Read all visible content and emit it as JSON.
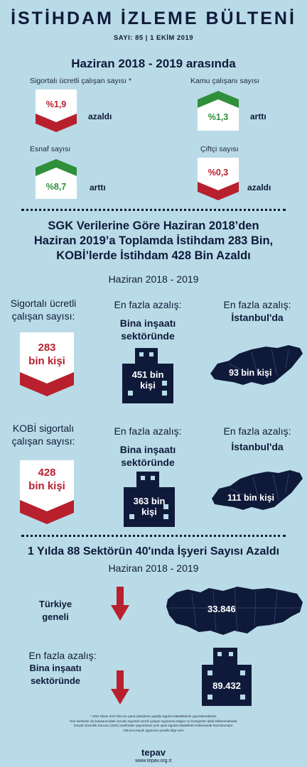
{
  "header": {
    "title": "İSTİHDAM İZLEME BÜLTENİ",
    "issue": "SAYI: 85 | 1 EKİM 2019"
  },
  "summary": {
    "period": "Haziran 2018 - 2019 arasında",
    "items": [
      {
        "label": "Sigortalı ücretli çalışan sayısı *",
        "value": "%1,9",
        "status": "azaldı",
        "direction": "down",
        "color": "#b8202e"
      },
      {
        "label": "Kamu çalışanı sayısı",
        "value": "%1,3",
        "status": "arttı",
        "direction": "up",
        "color": "#2f8f3a"
      },
      {
        "label": "Esnaf sayısı",
        "value": "%8,7",
        "status": "arttı",
        "direction": "up",
        "color": "#2f8f3a"
      },
      {
        "label": "Çiftçi sayısı",
        "value": "%0,3",
        "status": "azaldı",
        "direction": "down",
        "color": "#b8202e"
      }
    ]
  },
  "section2": {
    "headline": [
      "SGK Verilerine Göre Haziran 2018’den",
      "Haziran 2019’a Toplamda İstihdam 283 Bin,",
      "KOBİ’lerde İstihdam 428 Bin Azaldı"
    ],
    "period": "Haziran 2018 - 2019",
    "rows": [
      {
        "left_label": [
          "Sigortalı ücretli",
          "çalışan sayısı:"
        ],
        "left_value": [
          "283",
          "bin kişi"
        ],
        "mid_label": "En fazla azalış:",
        "mid_bold": [
          "Bina inşaatı",
          "sektöründe"
        ],
        "mid_value": [
          "451 bin",
          "kişi"
        ],
        "right_label": "En fazla azalış:",
        "right_bold": "İstanbul'da",
        "right_value": "93 bin kişi"
      },
      {
        "left_label": [
          "KOBİ sigortalı",
          "çalışan sayısı:"
        ],
        "left_value": [
          "428",
          "bin kişi"
        ],
        "mid_label": "En fazla azalış:",
        "mid_bold": [
          "Bina inşaatı",
          "sektöründe"
        ],
        "mid_value": [
          "363 bin",
          "kişi"
        ],
        "right_label": "En fazla azalış:",
        "right_bold": "İstanbul'da",
        "right_value": "111 bin kişi"
      }
    ]
  },
  "section3": {
    "headline": "1 Yılda 88 Sektörün 40'ında İşyeri Sayısı Azaldı",
    "period": "Haziran 2018 - 2019",
    "turkey": {
      "label": [
        "Türkiye",
        "geneli"
      ],
      "value": "33.846"
    },
    "sector": {
      "label": "En fazla azalış:",
      "bold": [
        "Bina inşaatı",
        "sektöründe"
      ],
      "value": "89.432"
    }
  },
  "footer": {
    "notes": [
      "* SGK Nisan 2017'den bu yana iyileştirme yaptığı sigorta istatistiklerini yayımlamaktadır.",
      "Yeni serilerde 4/a kapsamındaki zorunlu sigortalı ücretli çalışan sayılarına stajyer ve kursiyerler dahil edilmemektedir.",
      "Sosyal Güvenlik Kurumu (SGK) tarafından yayımlanan yeni aylık sigorta istatistikleri kullanılarak hazırlanmıştır.",
      "Yalnızca kayıtlı işgücüne yönelik bilgi verir."
    ],
    "brand": "tepav",
    "url": "www.tepav.org.tr"
  },
  "colors": {
    "navy": "#0f1a3a",
    "red": "#b8202e",
    "green": "#2f8f3a",
    "background": "#b9dbe7"
  }
}
